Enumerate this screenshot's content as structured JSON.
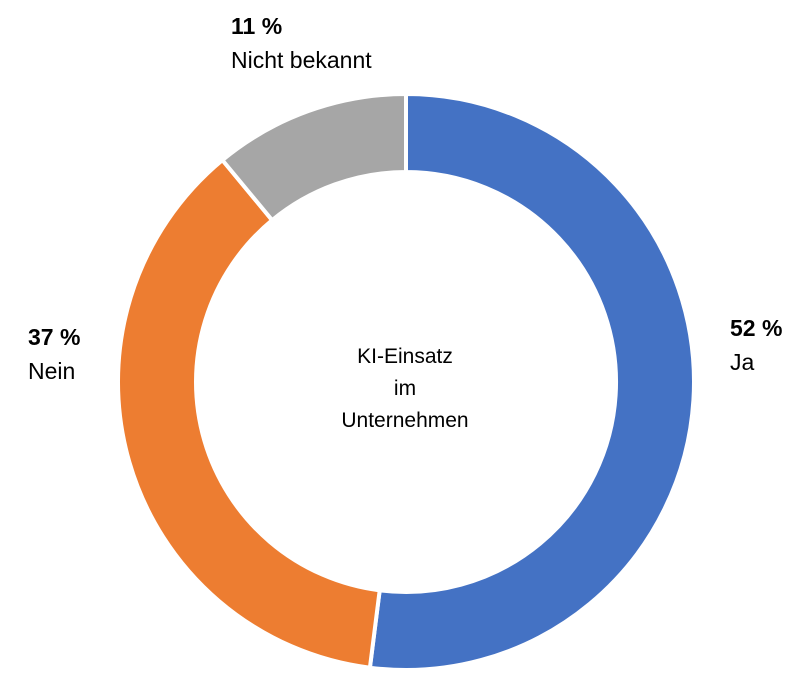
{
  "chart_data": {
    "type": "pie",
    "variant": "donut",
    "center_label_lines": [
      "KI-Einsatz",
      "im",
      "Unternehmen"
    ],
    "slices": [
      {
        "label": "Ja",
        "value": 52,
        "percent_label": "52 %",
        "color": "#4472C4"
      },
      {
        "label": "Nein",
        "value": 37,
        "percent_label": "37 %",
        "color": "#ED7D31"
      },
      {
        "label": "Nicht bekannt",
        "value": 11,
        "percent_label": "11 %",
        "color": "#A6A6A6"
      }
    ],
    "start_angle_deg": -90,
    "direction": "clockwise",
    "inner_radius_ratio": 0.73,
    "slice_border_color": "#FFFFFF",
    "legend": "none",
    "background": "#FFFFFF"
  }
}
